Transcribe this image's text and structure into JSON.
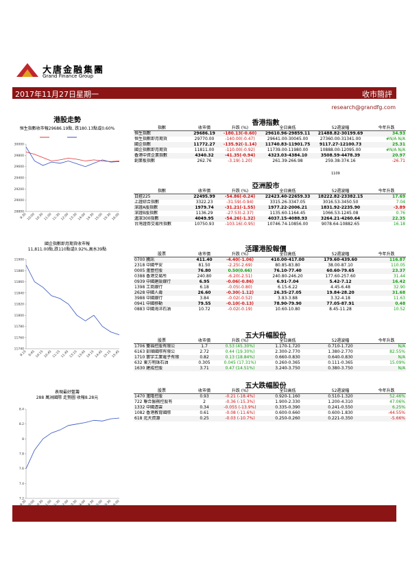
{
  "header": {
    "logo_cn": "大唐金融集團",
    "logo_en": "Grand Finance Group",
    "date": "2017年11月27日星期一",
    "report_type": "收市簡評",
    "email": "research@grandfg.com"
  },
  "hk_trend": {
    "title": "港股走勢",
    "charts": [
      {
        "caption": [
          "恒生指數收市報29686.19點, 跌180.13點或0.60%"
        ],
        "categories": [
          "9:30",
          "10:00",
          "10:30",
          "11:00",
          "11:30",
          "12:00",
          "13:30",
          "14:00",
          "14:30",
          "15:00",
          "15:30",
          "16:00"
        ],
        "series": [
          {
            "color": "#e03030",
            "values": [
              29860,
              29820,
              29760,
              29700,
              29720,
              29750,
              29730,
              29700,
              29720,
              29700,
              29690,
              29700
            ]
          },
          {
            "color": "#3050c0",
            "values": [
              29950,
              29700,
              29620,
              29680,
              29660,
              29700,
              29650,
              29600,
              29660,
              29720,
              29680,
              29690
            ]
          }
        ],
        "ylim": [
          28800,
          30000
        ],
        "yticks": [
          28800,
          29000,
          29200,
          29400,
          29600,
          29800,
          30000
        ]
      },
      {
        "caption": [
          "國企指數即月期貨收市報",
          "11,811.00點,跌110點或0.92%,高水39點"
        ],
        "categories": [
          "9:15",
          "9:45",
          "10:15",
          "10:45",
          "11:15",
          "11:45",
          "13:15",
          "13:45",
          "14:15",
          "14:45",
          "15:15",
          "15:45"
        ],
        "series": [
          {
            "color": "#3050c0",
            "values": [
              11890,
              11860,
              11850,
              11835,
              11830,
              11820,
              11800,
              11790,
              11800,
              11780,
              11770,
              11765
            ]
          }
        ],
        "ylim": [
          11740,
          11900
        ],
        "yticks": [
          11740,
          11760,
          11780,
          11800,
          11820,
          11840,
          11860,
          11880,
          11900
        ]
      },
      {
        "caption": [
          "表現最好藍籌",
          "288 萬洲國際 走勢圖 收報8.28元"
        ],
        "categories": [
          "9:30",
          "10:00",
          "10:30",
          "11:00",
          "11:30",
          "12:00",
          "13:30",
          "14:00",
          "14:30",
          "15:00",
          "15:30",
          "16:00"
        ],
        "series": [
          {
            "color": "#3050c0",
            "values": [
              7.6,
              7.85,
              8.0,
              8.08,
              8.12,
              8.18,
              8.2,
              8.22,
              8.25,
              8.24,
              8.27,
              8.28
            ]
          }
        ],
        "ylim": [
          7.2,
          8.4
        ],
        "yticks": [
          7.2,
          7.4,
          7.6,
          7.8,
          8,
          8.2,
          8.4
        ]
      }
    ]
  },
  "note": "1109",
  "tables": [
    {
      "title": "香港指數",
      "columns": [
        "指數",
        "收市價",
        "升跌 (%)",
        "全日高低",
        "52週波幅",
        "今年升跌"
      ],
      "rows": [
        [
          "恒生指數",
          "29686.19",
          "-180.13(-0.60)",
          "29610.96-29859.11",
          "21488.82-30199.69",
          "34.93"
        ],
        [
          "恒生指數即月期貨",
          "29770.00",
          "-140.00(-0.47)",
          "29641.00-30045.00",
          "27360.00-31341.00",
          "#N/A N/A"
        ],
        [
          "國企指數",
          "11772.27",
          "-135.92(-1.14)",
          "11740.83-11901.75",
          "9117.27-12100.73",
          "25.31"
        ],
        [
          "國企指數即月期貨",
          "11811.00",
          "-110.00(-0.92)",
          "11739.00-11980.00",
          "10888.00-12095.00",
          "#N/A N/A"
        ],
        [
          "香港中資企業指數",
          "4340.32",
          "-41.35(-0.94)",
          "4323.03-4384.10",
          "3508.59-4478.39",
          "20.97"
        ],
        [
          "創業板指數",
          "262.76",
          "-3.19(-1.20)",
          "261.39-266.98",
          "259.38-374.16",
          "-26.71"
        ]
      ]
    },
    {
      "title": "亞洲股市",
      "columns": [
        "指數",
        "收市價",
        "升跌 (%)",
        "全日高低",
        "52週波幅",
        "今年升跌"
      ],
      "rows": [
        [
          "日經225",
          "22495.99",
          "-54.86(-0.24)",
          "22423.40-22659.33",
          "18222.82-23382.15",
          "17.69"
        ],
        [
          "上證綜合指數",
          "3322.23",
          "-31.59(-0.94)",
          "3315.26-3347.05",
          "3016.53-3450.50",
          "7.04"
        ],
        [
          "深證A股指數",
          "1979.74",
          "-31.21(-1.55)",
          "1977.22-2006.21",
          "1831.92-2235.90",
          "-3.89"
        ],
        [
          "深證B股指數",
          "1136.29",
          "-27.53(-2.37)",
          "1135.60-1164.45",
          "1066.53-1245.08",
          "0.76"
        ],
        [
          "滬深300指數",
          "4049.95",
          "-54.26(-1.32)",
          "4037.15-4088.93",
          "3264.21-4260.64",
          "22.35"
        ],
        [
          "台灣證券交易所指數",
          "10750.93",
          "-103.16(-0.95)",
          "10746.74-10856.00",
          "9078.64-10882.65",
          "16.18"
        ]
      ]
    },
    {
      "title": "活躍港股報價",
      "columns": [
        "股票",
        "收市價",
        "升跌 (%)",
        "全日高低",
        "52週波幅",
        "今年升跌"
      ],
      "rows": [
        [
          "0700 騰訊",
          "411.40",
          "-4.40(-1.06)",
          "410.00-417.00",
          "179.60-439.60",
          "116.87"
        ],
        [
          "2318 中國平安",
          "81.50",
          "-2.25(-2.69)",
          "80.85-83.80",
          "38.00-87.10",
          "110.05"
        ],
        [
          "0005 滙豐控股",
          "76.80",
          "0.50(0.66)",
          "76.10-77.40",
          "60.60-79.65",
          "23.37"
        ],
        [
          "0388 香港交易所",
          "240.80",
          "-6.20(-2.51)",
          "240.80-246.20",
          "177.60-257.60",
          "31.44"
        ],
        [
          "0939 中國建設銀行",
          "6.95",
          "-0.06(-0.86)",
          "6.91-7.04",
          "5.42-7.12",
          "16.42"
        ],
        [
          "1398 工商銀行",
          "6.18",
          "-0.05(-0.80)",
          "6.15-6.22",
          "4.45-6.48",
          "32.90"
        ],
        [
          "2628 中國人壽",
          "26.60",
          "-0.30(-1.12)",
          "26.35-27.05",
          "19.84-28.20",
          "31.68"
        ],
        [
          "3988 中國銀行",
          "3.84",
          "-0.02(-0.52)",
          "3.83-3.88",
          "3.32-4.18",
          "11.63"
        ],
        [
          "0941 中國移動",
          "79.55",
          "-0.10(-0.13)",
          "78.90-79.90",
          "77.05-87.91",
          "0.48"
        ],
        [
          "0883 中國海洋石油",
          "10.72",
          "-0.02(-0.19)",
          "10.60-10.80",
          "8.45-11.28",
          "10.52"
        ]
      ]
    },
    {
      "title": "五大升幅股份",
      "columns": [
        "股票",
        "收市價",
        "升跌 (%)",
        "全日高低",
        "52週波幅",
        "今年升跌"
      ],
      "rows": [
        [
          "1706 雙福控股有限公",
          "1.7",
          "0.53 (45.30%)",
          "1.170-1.720",
          "0.710-1.720",
          "N/A"
        ],
        [
          "6163 彭順國際有限公",
          "2.72",
          "0.44 (19.30%)",
          "2.300-2.770",
          "1.380-2.770",
          "82.55%"
        ],
        [
          "1710 寰宇工業電子有限",
          "0.82",
          "0.13 (18.84%)",
          "0.660-0.830",
          "0.640-0.830",
          "N/A"
        ],
        [
          "632 東方明珠石油",
          "0.305",
          "0.045 (17.31%)",
          "0.260-0.365",
          "0.111-0.365",
          "15.09%"
        ],
        [
          "1630 建成控股",
          "3.71",
          "0.47 (14.51%)",
          "3.240-3.750",
          "0.380-3.750",
          "N/A"
        ]
      ]
    },
    {
      "title": "五大跌幅股份",
      "columns": [
        "股票",
        "收市價",
        "升跌 (%)",
        "全日高低",
        "52週波幅",
        "今年升跌"
      ],
      "rows": [
        [
          "1470 滙隆控股",
          "0.93",
          "-0.21 (-18.4%)",
          "0.920-1.160",
          "0.510-1.320",
          "52.46%"
        ],
        [
          "722 聯合醫務控股有",
          "2",
          "-0.36 (-15.3%)",
          "1.900-2.330",
          "1.200-4.310",
          "47.06%"
        ],
        [
          "1332 中國透雲",
          "0.34",
          "-0.055 (-13.9%)",
          "0.335-0.390",
          "0.241-0.550",
          "6.25%"
        ],
        [
          "1082 香港教育國際",
          "0.61",
          "-0.08 (-11.6%)",
          "0.600-0.660",
          "0.600-1.830",
          "-44.55%"
        ],
        [
          "618 北大資源",
          "0.25",
          "-0.03 (-10.7%)",
          "0.250-0.260",
          "0.221-0.350",
          "-5.66%"
        ]
      ]
    }
  ]
}
